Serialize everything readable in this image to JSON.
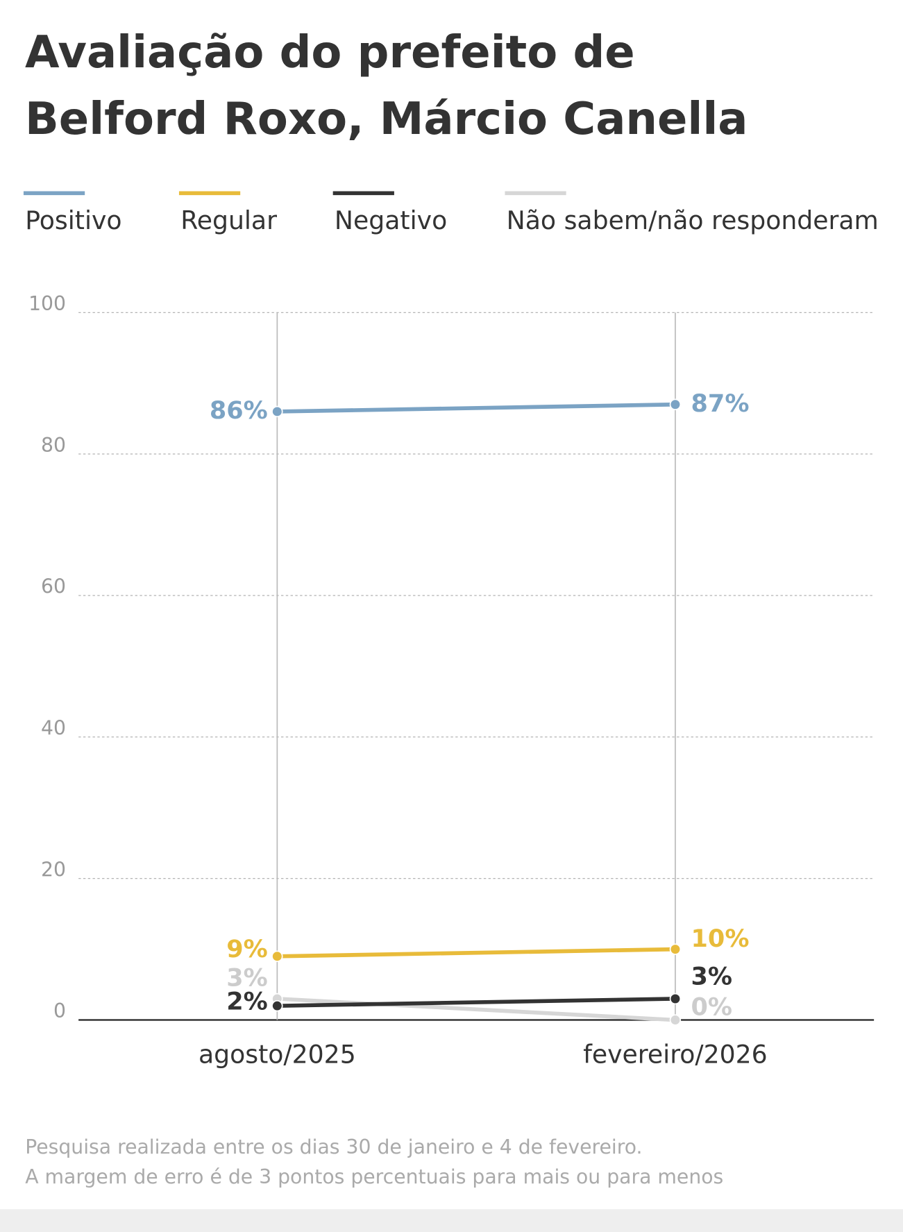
{
  "chart_data": {
    "type": "line",
    "title": "Avaliação do prefeito de Belford Roxo, Márcio Canella",
    "categories": [
      "agosto/2025",
      "fevereiro/2026"
    ],
    "series": [
      {
        "name": "Positivo",
        "color": "#7ba3c4",
        "values": [
          86,
          87
        ],
        "value_labels": [
          "86%",
          "87%"
        ]
      },
      {
        "name": "Regular",
        "color": "#e8bb3a",
        "values": [
          9,
          10
        ],
        "value_labels": [
          "9%",
          "10%"
        ]
      },
      {
        "name": "Negativo",
        "color": "#333333",
        "values": [
          2,
          3
        ],
        "value_labels": [
          "2%",
          "3%"
        ]
      },
      {
        "name": "Não sabem/não responderam",
        "color": "#d6d6d6",
        "values": [
          3,
          0
        ],
        "value_labels": [
          "3%",
          "0%"
        ]
      }
    ],
    "ylim": [
      0,
      100
    ],
    "yticks": [
      0,
      20,
      40,
      60,
      80,
      100
    ],
    "grid": true,
    "notes": [
      "Pesquisa realizada entre os dias 30 de janeiro e 4 de fevereiro.",
      "A margem de erro é de 3 pontos percentuais para mais ou para menos"
    ]
  }
}
